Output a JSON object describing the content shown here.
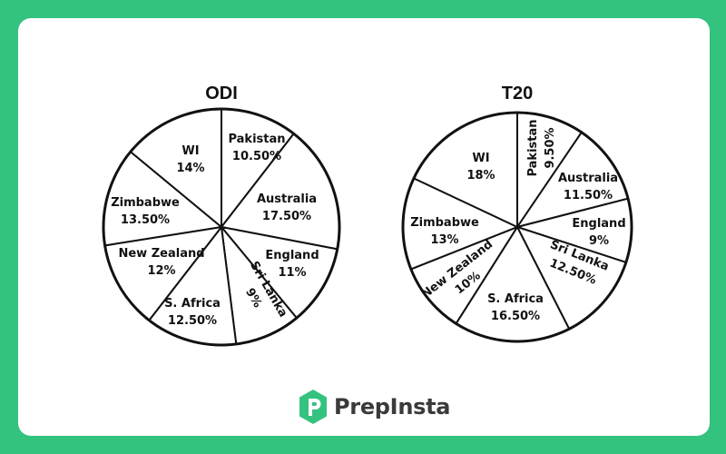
{
  "brand": {
    "name": "PrepInsta",
    "color": "#34c27f"
  },
  "chart_data": [
    {
      "type": "pie",
      "title": "ODI",
      "slices": [
        {
          "label": "Pakistan",
          "value": 10.5,
          "value_label": "10.50%"
        },
        {
          "label": "Australia",
          "value": 17.5,
          "value_label": "17.50%"
        },
        {
          "label": "England",
          "value": 11,
          "value_label": "11%"
        },
        {
          "label": "Sri Lanka",
          "value": 9,
          "value_label": "9%"
        },
        {
          "label": "S. Africa",
          "value": 12.5,
          "value_label": "12.50%"
        },
        {
          "label": "New Zealand",
          "value": 12,
          "value_label": "12%"
        },
        {
          "label": "Zimbabwe",
          "value": 13.5,
          "value_label": "13.50%"
        },
        {
          "label": "WI",
          "value": 14,
          "value_label": "14%"
        }
      ]
    },
    {
      "type": "pie",
      "title": "T20",
      "slices": [
        {
          "label": "Pakistan",
          "value": 9.5,
          "value_label": "9.50%"
        },
        {
          "label": "Australia",
          "value": 11.5,
          "value_label": "11.50%"
        },
        {
          "label": "England",
          "value": 9,
          "value_label": "9%"
        },
        {
          "label": "Sri Lanka",
          "value": 12.5,
          "value_label": "12.50%"
        },
        {
          "label": "S. Africa",
          "value": 16.5,
          "value_label": "16.50%"
        },
        {
          "label": "New Zealand",
          "value": 10,
          "value_label": "10%"
        },
        {
          "label": "Zimbabwe",
          "value": 13,
          "value_label": "13%"
        },
        {
          "label": "WI",
          "value": 18,
          "value_label": "18%"
        }
      ]
    }
  ]
}
